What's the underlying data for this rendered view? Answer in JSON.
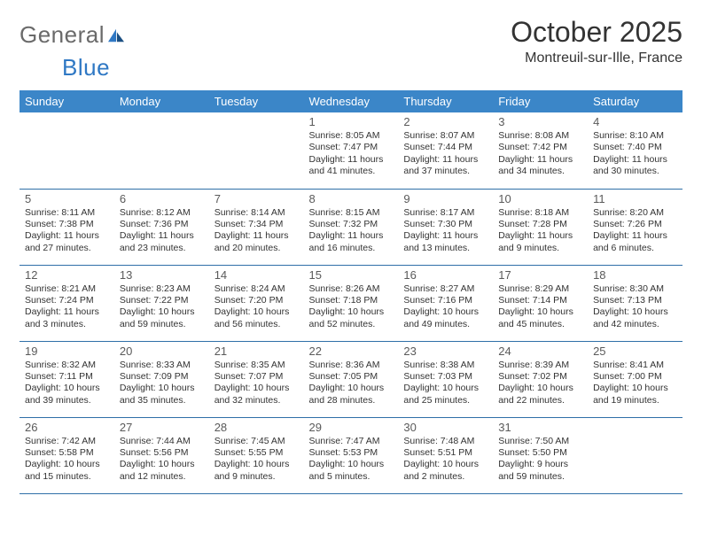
{
  "logo": {
    "word1": "General",
    "word2": "Blue"
  },
  "header": {
    "title": "October 2025",
    "location": "Montreuil-sur-Ille, France"
  },
  "colors": {
    "header_bg": "#3b86c8",
    "row_border": "#2f6fa8",
    "logo_gray": "#6a6a6a",
    "logo_blue": "#2f78c4"
  },
  "day_labels": [
    "Sunday",
    "Monday",
    "Tuesday",
    "Wednesday",
    "Thursday",
    "Friday",
    "Saturday"
  ],
  "weeks": [
    [
      null,
      null,
      null,
      {
        "n": "1",
        "sr": "Sunrise: 8:05 AM",
        "ss": "Sunset: 7:47 PM",
        "dl": "Daylight: 11 hours and 41 minutes."
      },
      {
        "n": "2",
        "sr": "Sunrise: 8:07 AM",
        "ss": "Sunset: 7:44 PM",
        "dl": "Daylight: 11 hours and 37 minutes."
      },
      {
        "n": "3",
        "sr": "Sunrise: 8:08 AM",
        "ss": "Sunset: 7:42 PM",
        "dl": "Daylight: 11 hours and 34 minutes."
      },
      {
        "n": "4",
        "sr": "Sunrise: 8:10 AM",
        "ss": "Sunset: 7:40 PM",
        "dl": "Daylight: 11 hours and 30 minutes."
      }
    ],
    [
      {
        "n": "5",
        "sr": "Sunrise: 8:11 AM",
        "ss": "Sunset: 7:38 PM",
        "dl": "Daylight: 11 hours and 27 minutes."
      },
      {
        "n": "6",
        "sr": "Sunrise: 8:12 AM",
        "ss": "Sunset: 7:36 PM",
        "dl": "Daylight: 11 hours and 23 minutes."
      },
      {
        "n": "7",
        "sr": "Sunrise: 8:14 AM",
        "ss": "Sunset: 7:34 PM",
        "dl": "Daylight: 11 hours and 20 minutes."
      },
      {
        "n": "8",
        "sr": "Sunrise: 8:15 AM",
        "ss": "Sunset: 7:32 PM",
        "dl": "Daylight: 11 hours and 16 minutes."
      },
      {
        "n": "9",
        "sr": "Sunrise: 8:17 AM",
        "ss": "Sunset: 7:30 PM",
        "dl": "Daylight: 11 hours and 13 minutes."
      },
      {
        "n": "10",
        "sr": "Sunrise: 8:18 AM",
        "ss": "Sunset: 7:28 PM",
        "dl": "Daylight: 11 hours and 9 minutes."
      },
      {
        "n": "11",
        "sr": "Sunrise: 8:20 AM",
        "ss": "Sunset: 7:26 PM",
        "dl": "Daylight: 11 hours and 6 minutes."
      }
    ],
    [
      {
        "n": "12",
        "sr": "Sunrise: 8:21 AM",
        "ss": "Sunset: 7:24 PM",
        "dl": "Daylight: 11 hours and 3 minutes."
      },
      {
        "n": "13",
        "sr": "Sunrise: 8:23 AM",
        "ss": "Sunset: 7:22 PM",
        "dl": "Daylight: 10 hours and 59 minutes."
      },
      {
        "n": "14",
        "sr": "Sunrise: 8:24 AM",
        "ss": "Sunset: 7:20 PM",
        "dl": "Daylight: 10 hours and 56 minutes."
      },
      {
        "n": "15",
        "sr": "Sunrise: 8:26 AM",
        "ss": "Sunset: 7:18 PM",
        "dl": "Daylight: 10 hours and 52 minutes."
      },
      {
        "n": "16",
        "sr": "Sunrise: 8:27 AM",
        "ss": "Sunset: 7:16 PM",
        "dl": "Daylight: 10 hours and 49 minutes."
      },
      {
        "n": "17",
        "sr": "Sunrise: 8:29 AM",
        "ss": "Sunset: 7:14 PM",
        "dl": "Daylight: 10 hours and 45 minutes."
      },
      {
        "n": "18",
        "sr": "Sunrise: 8:30 AM",
        "ss": "Sunset: 7:13 PM",
        "dl": "Daylight: 10 hours and 42 minutes."
      }
    ],
    [
      {
        "n": "19",
        "sr": "Sunrise: 8:32 AM",
        "ss": "Sunset: 7:11 PM",
        "dl": "Daylight: 10 hours and 39 minutes."
      },
      {
        "n": "20",
        "sr": "Sunrise: 8:33 AM",
        "ss": "Sunset: 7:09 PM",
        "dl": "Daylight: 10 hours and 35 minutes."
      },
      {
        "n": "21",
        "sr": "Sunrise: 8:35 AM",
        "ss": "Sunset: 7:07 PM",
        "dl": "Daylight: 10 hours and 32 minutes."
      },
      {
        "n": "22",
        "sr": "Sunrise: 8:36 AM",
        "ss": "Sunset: 7:05 PM",
        "dl": "Daylight: 10 hours and 28 minutes."
      },
      {
        "n": "23",
        "sr": "Sunrise: 8:38 AM",
        "ss": "Sunset: 7:03 PM",
        "dl": "Daylight: 10 hours and 25 minutes."
      },
      {
        "n": "24",
        "sr": "Sunrise: 8:39 AM",
        "ss": "Sunset: 7:02 PM",
        "dl": "Daylight: 10 hours and 22 minutes."
      },
      {
        "n": "25",
        "sr": "Sunrise: 8:41 AM",
        "ss": "Sunset: 7:00 PM",
        "dl": "Daylight: 10 hours and 19 minutes."
      }
    ],
    [
      {
        "n": "26",
        "sr": "Sunrise: 7:42 AM",
        "ss": "Sunset: 5:58 PM",
        "dl": "Daylight: 10 hours and 15 minutes."
      },
      {
        "n": "27",
        "sr": "Sunrise: 7:44 AM",
        "ss": "Sunset: 5:56 PM",
        "dl": "Daylight: 10 hours and 12 minutes."
      },
      {
        "n": "28",
        "sr": "Sunrise: 7:45 AM",
        "ss": "Sunset: 5:55 PM",
        "dl": "Daylight: 10 hours and 9 minutes."
      },
      {
        "n": "29",
        "sr": "Sunrise: 7:47 AM",
        "ss": "Sunset: 5:53 PM",
        "dl": "Daylight: 10 hours and 5 minutes."
      },
      {
        "n": "30",
        "sr": "Sunrise: 7:48 AM",
        "ss": "Sunset: 5:51 PM",
        "dl": "Daylight: 10 hours and 2 minutes."
      },
      {
        "n": "31",
        "sr": "Sunrise: 7:50 AM",
        "ss": "Sunset: 5:50 PM",
        "dl": "Daylight: 9 hours and 59 minutes."
      },
      null
    ]
  ]
}
